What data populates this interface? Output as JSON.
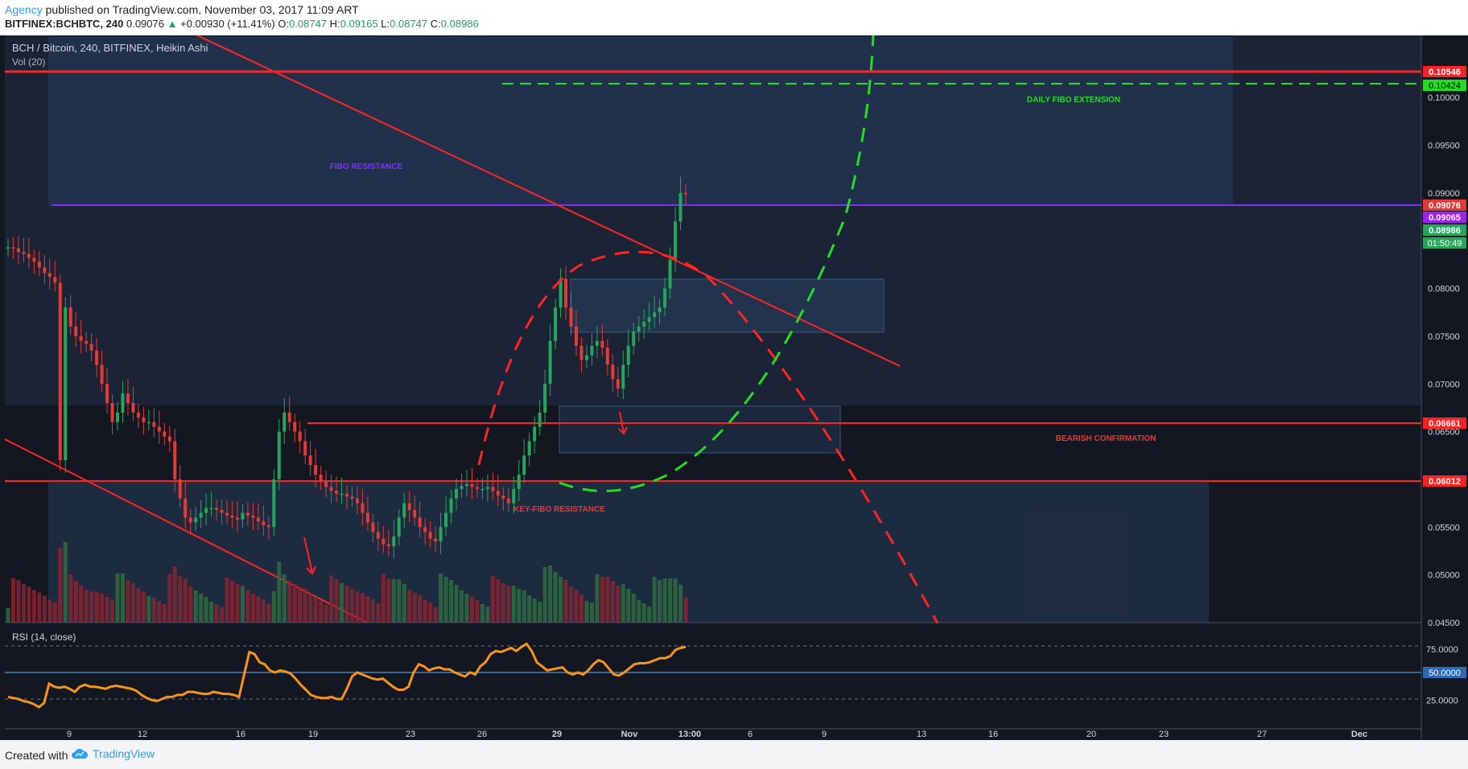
{
  "header": {
    "author": "Agency",
    "published": "published on TradingView.com, November 03, 2017 11:09 ART",
    "symbol": "BITFINEX:BCHBTC, 240",
    "last": "0.09076",
    "change": "+0.00930 (+11.41%)",
    "ohlc_o_label": "O:",
    "ohlc_o": "0.08747",
    "ohlc_h_label": "H:",
    "ohlc_h": "0.09165",
    "ohlc_l_label": "L:",
    "ohlc_l": "0.08747",
    "ohlc_c_label": "C:",
    "ohlc_c": "0.08986"
  },
  "legend": {
    "main": "BCH / Bitcoin, 240, BITFINEX, Heikin Ashi",
    "vol": "Vol (20)",
    "rsi": "RSI (14, close)"
  },
  "annotations": {
    "daily_fibo": "DAILY FIBO EXTENSION",
    "fibo_resistance": "FIBO RESISTANCE",
    "bearish": "BEARISH CONFIRMATION",
    "key_fibo": "KEY-FIBO RESISTANCE"
  },
  "price_labels": {
    "p1": "0.10546",
    "p2": "0.10424",
    "p3": "0.09076",
    "p4": "0.09065",
    "p5": "0.08986",
    "p6": "01:50:49",
    "p7": "0.06661",
    "p8": "0.06012",
    "rsi_mid": "50.0000"
  },
  "footer": {
    "created": "Created with",
    "brand": "TradingView"
  },
  "colors": {
    "background": "#131722",
    "up": "#26a65b",
    "down": "#e53935",
    "rsi": "#f7931a",
    "fibo": "#7b2fff",
    "green_dash": "#22dd22"
  },
  "chart_data": [
    {
      "type": "candlestick",
      "title": "BCH / Bitcoin, 240, BITFINEX, Heikin Ashi",
      "y_ticks": [
        "0.10000",
        "0.09500",
        "0.09000",
        "0.08500",
        "0.08000",
        "0.07500",
        "0.07000",
        "0.06500",
        "0.06000",
        "0.05500",
        "0.05000",
        "0.04500"
      ],
      "ylim": [
        0.045,
        0.1065
      ],
      "x_ticks": [
        "9",
        "12",
        "16",
        "19",
        "23",
        "26",
        "29",
        "Nov",
        "13:00",
        "6",
        "9",
        "13",
        "16",
        "20",
        "23",
        "27",
        "Dec"
      ],
      "horizontal_levels": [
        0.10546,
        0.10424,
        0.09076,
        0.06661,
        0.06012
      ],
      "closes": [
        0.0843,
        0.0842,
        0.0838,
        0.0836,
        0.0832,
        0.0828,
        0.0822,
        0.0816,
        0.0812,
        0.0806,
        0.062,
        0.078,
        0.076,
        0.075,
        0.0745,
        0.0742,
        0.0735,
        0.072,
        0.07,
        0.068,
        0.066,
        0.067,
        0.069,
        0.068,
        0.067,
        0.0665,
        0.066,
        0.066,
        0.0655,
        0.065,
        0.0645,
        0.064,
        0.06,
        0.058,
        0.056,
        0.0555,
        0.056,
        0.0565,
        0.057,
        0.057,
        0.0568,
        0.0565,
        0.0562,
        0.056,
        0.0558,
        0.0565,
        0.0562,
        0.056,
        0.0556,
        0.0552,
        0.055,
        0.06,
        0.065,
        0.067,
        0.066,
        0.065,
        0.064,
        0.0625,
        0.0615,
        0.0605,
        0.0598,
        0.0592,
        0.0588,
        0.0585,
        0.0585,
        0.0582,
        0.058,
        0.0575,
        0.0565,
        0.0555,
        0.0545,
        0.0538,
        0.0532,
        0.053,
        0.054,
        0.056,
        0.0575,
        0.0568,
        0.056,
        0.055,
        0.0545,
        0.0538,
        0.0535,
        0.055,
        0.0565,
        0.058,
        0.059,
        0.0593,
        0.0595,
        0.0592,
        0.059,
        0.059,
        0.0592,
        0.0588,
        0.0583,
        0.058,
        0.0575,
        0.059,
        0.0605,
        0.0625,
        0.064,
        0.0655,
        0.067,
        0.07,
        0.0745,
        0.078,
        0.081,
        0.078,
        0.076,
        0.074,
        0.0725,
        0.073,
        0.074,
        0.0745,
        0.0738,
        0.072,
        0.0705,
        0.0695,
        0.072,
        0.074,
        0.0755,
        0.076,
        0.0765,
        0.077,
        0.0775,
        0.078,
        0.08,
        0.083,
        0.087,
        0.09,
        0.0899
      ],
      "volume_ylim": [
        0,
        1
      ]
    },
    {
      "type": "line",
      "title": "RSI (14, close)",
      "ylim": [
        0,
        100
      ],
      "y_ticks": [
        "75.0000",
        "50.0000",
        "25.0000"
      ],
      "bands": [
        75,
        50,
        25
      ],
      "values": [
        28,
        27,
        26,
        24,
        23,
        21,
        18,
        22,
        41,
        38,
        37,
        38,
        36,
        33,
        38,
        40,
        38,
        38,
        37,
        36,
        38,
        39,
        38,
        37,
        36,
        34,
        30,
        27,
        25,
        24,
        26,
        28,
        28,
        30,
        30,
        33,
        33,
        32,
        31,
        31,
        33,
        32,
        31,
        31,
        30,
        28,
        50,
        72,
        70,
        62,
        60,
        54,
        52,
        54,
        53,
        51,
        46,
        40,
        35,
        30,
        28,
        27,
        27,
        28,
        26,
        26,
        36,
        48,
        52,
        50,
        48,
        46,
        45,
        46,
        42,
        38,
        35,
        35,
        38,
        52,
        60,
        58,
        54,
        56,
        57,
        55,
        55,
        52,
        50,
        48,
        52,
        50,
        58,
        62,
        70,
        73,
        72,
        74,
        76,
        73,
        77,
        80,
        73,
        62,
        58,
        54,
        55,
        56,
        57,
        52,
        50,
        52,
        50,
        54,
        60,
        64,
        62,
        56,
        50,
        49,
        52,
        56,
        60,
        61,
        61,
        62,
        64,
        66,
        66,
        68,
        74,
        76,
        77
      ]
    }
  ]
}
